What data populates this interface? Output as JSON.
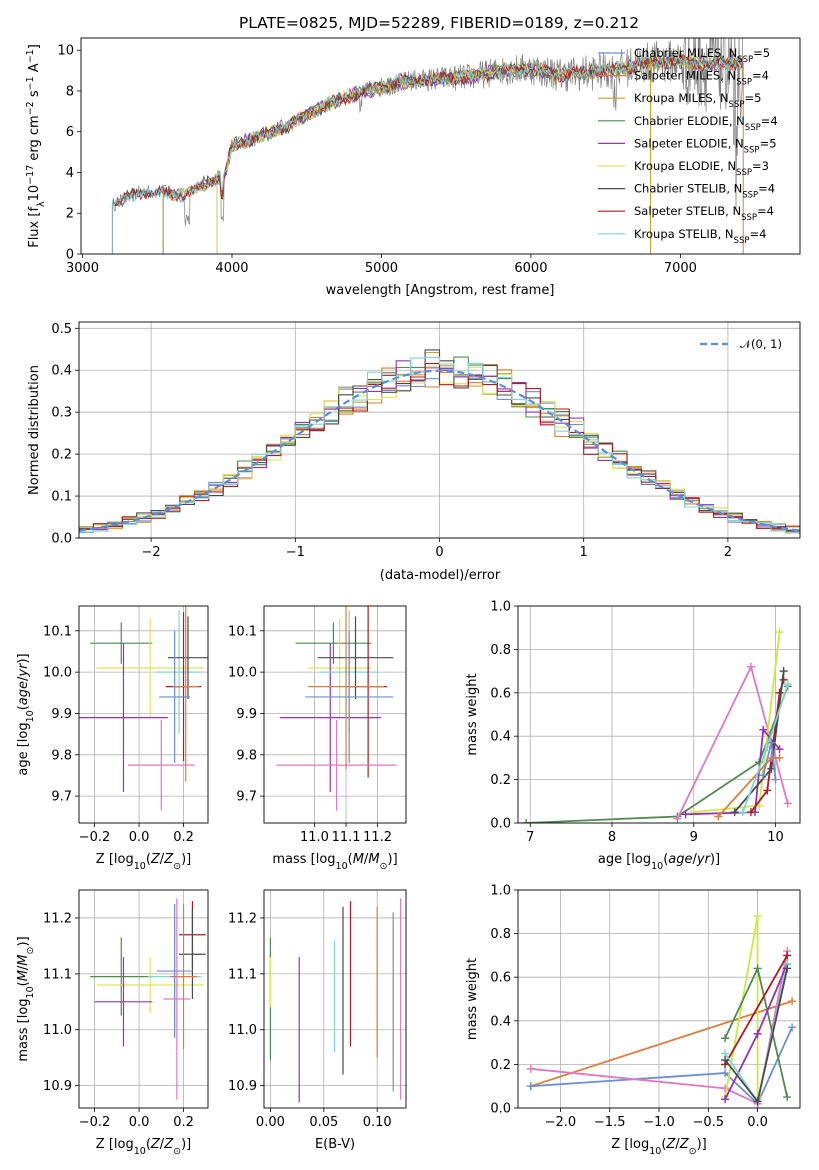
{
  "title": "PLATE=0825, MJD=52289, FIBERID=0189, z=0.212",
  "colors": {
    "chabrier_miles": "#6a8fd6",
    "salpeter_miles": "#e07b39",
    "kroupa_miles": "#c9a227",
    "chabrier_elodie": "#4f8a4f",
    "salpeter_elodie": "#9b30b8",
    "kroupa_elodie": "#dce35b",
    "chabrier_stelib": "#4a4a4a",
    "salpeter_stelib": "#b3181c",
    "kroupa_stelib": "#7fd4d4",
    "pink": "#e377c2",
    "lime": "#c6ec3c",
    "data": "#808080",
    "normal": "#5b8fd6"
  },
  "chart_data": [
    {
      "type": "line",
      "panel": "spectrum",
      "xlabel": "wavelength [Angstrom, rest frame]",
      "ylabel": "Flux [f_λ10^-17 erg cm^-2 s^-1 A^-1]",
      "xlim": [
        2990,
        7800
      ],
      "ylim": [
        0,
        10.6
      ],
      "xticks": [
        "3000",
        "4000",
        "5000",
        "6000",
        "7000"
      ],
      "yticks": [
        "0",
        "2",
        "4",
        "6",
        "8",
        "10"
      ],
      "grid": false,
      "legend_position": "right",
      "continuum": {
        "x": [
          3200,
          3400,
          3550,
          3700,
          3850,
          3950,
          4000,
          4200,
          4400,
          4600,
          4800,
          5000,
          5200,
          5400,
          5600,
          5800,
          6000,
          6200,
          6400,
          6600,
          6800,
          7000,
          7200,
          7400
        ],
        "y": [
          2.4,
          3.1,
          3.0,
          2.9,
          3.6,
          3.8,
          5.3,
          5.8,
          6.4,
          7.2,
          7.8,
          8.2,
          8.5,
          8.6,
          8.7,
          9.0,
          9.1,
          8.8,
          8.9,
          9.1,
          9.4,
          9.5,
          9.3,
          9.4
        ]
      },
      "series": [
        {
          "name": "Chabrier MILES, N_SSP=5",
          "legend_label": "Chabrier MILES, N",
          "legend_sub": "SSP",
          "legend_suffix": "=5",
          "color_key": "chabrier_miles",
          "start": 3540
        },
        {
          "name": "Salpeter MILES, N_SSP=4",
          "legend_label": "Salpeter MILES, N",
          "legend_sub": "SSP",
          "legend_suffix": "=4",
          "color_key": "salpeter_miles",
          "start": 3540
        },
        {
          "name": "Kroupa MILES, N_SSP=5",
          "legend_label": "Kroupa MILES, N",
          "legend_sub": "SSP",
          "legend_suffix": "=5",
          "color_key": "kroupa_miles",
          "start": 3540
        },
        {
          "name": "Chabrier ELODIE, N_SSP=4",
          "legend_label": "Chabrier ELODIE, N",
          "legend_sub": "SSP",
          "legend_suffix": "=4",
          "color_key": "chabrier_elodie",
          "start": 3900
        },
        {
          "name": "Salpeter ELODIE, N_SSP=5",
          "legend_label": "Salpeter ELODIE, N",
          "legend_sub": "SSP",
          "legend_suffix": "=5",
          "color_key": "salpeter_elodie",
          "start": 3900
        },
        {
          "name": "Kroupa ELODIE, N_SSP=3",
          "legend_label": "Kroupa ELODIE, N",
          "legend_sub": "SSP",
          "legend_suffix": "=3",
          "color_key": "kroupa_elodie",
          "start": 3900
        },
        {
          "name": "Chabrier STELIB, N_SSP=4",
          "legend_label": "Chabrier STELIB, N",
          "legend_sub": "SSP",
          "legend_suffix": "=4",
          "color_key": "chabrier_stelib",
          "start": 3200
        },
        {
          "name": "Salpeter STELIB, N_SSP=4",
          "legend_label": "Salpeter STELIB, N",
          "legend_sub": "SSP",
          "legend_suffix": "=4",
          "color_key": "salpeter_stelib",
          "start": 3200
        },
        {
          "name": "Kroupa STELIB, N_SSP=4",
          "legend_label": "Kroupa STELIB, N",
          "legend_sub": "SSP",
          "legend_suffix": "=4",
          "color_key": "kroupa_stelib",
          "start": 3200
        }
      ]
    },
    {
      "type": "line",
      "panel": "residual_histogram",
      "xlabel": "(data-model)/error",
      "ylabel": "Normed distribution",
      "xlim": [
        -2.5,
        2.5
      ],
      "ylim": [
        0,
        0.515
      ],
      "xticks": [
        "−2",
        "−1",
        "0",
        "1",
        "2"
      ],
      "yticks": [
        "0.0",
        "0.1",
        "0.2",
        "0.3",
        "0.4",
        "0.5"
      ],
      "grid": true,
      "legend_position": "upper right",
      "reference_curve": "𝒩(0, 1)",
      "bin_width": 0.1,
      "histogram_series": 9
    },
    {
      "type": "scatter",
      "panel": "age_vs_metallicity",
      "xlabel": "Z [log10(Z/Z⊙)]",
      "ylabel": "age [log10(age/yr)]",
      "xlim": [
        -0.27,
        0.31
      ],
      "ylim": [
        9.635,
        10.16
      ],
      "xticks": [
        "−0.2",
        "0.0",
        "0.2"
      ],
      "yticks": [
        "9.7",
        "9.8",
        "9.9",
        "10.0",
        "10.1"
      ],
      "grid": true,
      "points": [
        {
          "x": -0.08,
          "xerr": 0.14,
          "y": 10.07,
          "yerr": 0.05,
          "color_key": "chabrier_elodie"
        },
        {
          "x": 0.05,
          "xerr": 0.24,
          "y": 10.01,
          "yerr": 0.12,
          "color_key": "kroupa_elodie"
        },
        {
          "x": -0.07,
          "xerr": 0.2,
          "y": 9.89,
          "yerr": 0.18,
          "color_key": "salpeter_elodie"
        },
        {
          "x": 0.18,
          "xerr": 0.1,
          "y": 10.0,
          "yerr": 0.15,
          "color_key": "kroupa_stelib"
        },
        {
          "x": 0.22,
          "xerr": 0.09,
          "y": 10.035,
          "yerr": 0.1,
          "color_key": "chabrier_stelib"
        },
        {
          "x": 0.2,
          "xerr": 0.08,
          "y": 9.965,
          "yerr": 0.18,
          "color_key": "salpeter_stelib"
        },
        {
          "x": 0.21,
          "xerr": 0.06,
          "y": 9.965,
          "yerr": 0.23,
          "color_key": "salpeter_miles"
        },
        {
          "x": 0.16,
          "xerr": 0.07,
          "y": 9.94,
          "yerr": 0.16,
          "color_key": "chabrier_miles"
        },
        {
          "x": 0.1,
          "xerr": 0.15,
          "y": 9.775,
          "yerr": 0.11,
          "color_key": "pink"
        }
      ]
    },
    {
      "type": "scatter",
      "panel": "age_vs_mass",
      "xlabel": "mass [log10(M/M⊙)]",
      "ylabel": "",
      "xlim": [
        10.84,
        11.29
      ],
      "ylim": [
        9.635,
        10.16
      ],
      "xticks": [
        "11.0",
        "11.1",
        "11.2"
      ],
      "yticks": [
        "9.7",
        "9.8",
        "9.9",
        "10.0",
        "10.1"
      ],
      "grid": true,
      "points": [
        {
          "x": 11.06,
          "xerr": 0.12,
          "y": 10.07,
          "yerr": 0.05,
          "color_key": "chabrier_elodie"
        },
        {
          "x": 11.08,
          "xerr": 0.1,
          "y": 10.01,
          "yerr": 0.12,
          "color_key": "kroupa_elodie"
        },
        {
          "x": 11.05,
          "xerr": 0.16,
          "y": 9.89,
          "yerr": 0.18,
          "color_key": "salpeter_elodie"
        },
        {
          "x": 11.11,
          "xerr": 0.09,
          "y": 10.0,
          "yerr": 0.15,
          "color_key": "kroupa_stelib"
        },
        {
          "x": 11.13,
          "xerr": 0.12,
          "y": 10.035,
          "yerr": 0.1,
          "color_key": "chabrier_stelib"
        },
        {
          "x": 11.17,
          "xerr": 0.06,
          "y": 9.965,
          "yerr": 0.22,
          "color_key": "salpeter_stelib"
        },
        {
          "x": 11.1,
          "xerr": 0.12,
          "y": 9.965,
          "yerr": 0.2,
          "color_key": "salpeter_miles"
        },
        {
          "x": 11.11,
          "xerr": 0.14,
          "y": 9.94,
          "yerr": 0.16,
          "color_key": "chabrier_miles"
        },
        {
          "x": 11.07,
          "xerr": 0.19,
          "y": 9.775,
          "yerr": 0.11,
          "color_key": "pink"
        }
      ]
    },
    {
      "type": "line",
      "panel": "mass_weight_vs_age",
      "xlabel": "age [log10(age/yr)]",
      "ylabel": "mass weight",
      "xlim": [
        6.85,
        10.3
      ],
      "ylim": [
        0,
        1
      ],
      "xticks": [
        "7",
        "8",
        "9",
        "10"
      ],
      "yticks": [
        "0.0",
        "0.2",
        "0.4",
        "0.6",
        "0.8",
        "1.0"
      ],
      "grid": true,
      "series": [
        {
          "color_key": "chabrier_elodie",
          "x": [
            6.95,
            8.8,
            9.8,
            10.15
          ],
          "y": [
            0.0,
            0.03,
            0.28,
            0.63
          ]
        },
        {
          "color_key": "pink",
          "x": [
            8.8,
            9.7,
            10.15
          ],
          "y": [
            0.02,
            0.72,
            0.09
          ]
        },
        {
          "color_key": "lime",
          "x": [
            9.0,
            9.8,
            10.05
          ],
          "y": [
            0.05,
            0.08,
            0.88
          ]
        },
        {
          "color_key": "salpeter_elodie",
          "x": [
            8.9,
            9.75,
            9.85,
            10.05
          ],
          "y": [
            0.04,
            0.05,
            0.43,
            0.34
          ]
        },
        {
          "color_key": "salpeter_stelib",
          "x": [
            9.7,
            9.9,
            10.05,
            10.1
          ],
          "y": [
            0.05,
            0.15,
            0.6,
            0.66
          ]
        },
        {
          "color_key": "chabrier_stelib",
          "x": [
            9.5,
            9.95,
            10.1
          ],
          "y": [
            0.05,
            0.25,
            0.7
          ]
        },
        {
          "color_key": "salpeter_miles",
          "x": [
            9.3,
            9.95,
            10.05
          ],
          "y": [
            0.03,
            0.3,
            0.3
          ]
        },
        {
          "color_key": "kroupa_stelib",
          "x": [
            9.6,
            9.9,
            10.15
          ],
          "y": [
            0.05,
            0.35,
            0.64
          ]
        },
        {
          "color_key": "chabrier_miles",
          "x": [
            9.85,
            9.95,
            10.0
          ],
          "y": [
            0.22,
            0.37,
            0.2
          ]
        }
      ]
    },
    {
      "type": "scatter",
      "panel": "mass_vs_metallicity",
      "xlabel": "Z [log10(Z/Z⊙)]",
      "ylabel": "mass [log10(M/M⊙)]",
      "xlim": [
        -0.27,
        0.31
      ],
      "ylim": [
        10.86,
        11.25
      ],
      "xticks": [
        "−0.2",
        "0.0",
        "0.2"
      ],
      "yticks": [
        "10.9",
        "11.0",
        "11.1",
        "11.2"
      ],
      "grid": true,
      "points": [
        {
          "x": -0.08,
          "xerr": 0.14,
          "y": 11.095,
          "yerr": 0.07,
          "color_key": "chabrier_elodie"
        },
        {
          "x": 0.05,
          "xerr": 0.24,
          "y": 11.08,
          "yerr": 0.05,
          "color_key": "kroupa_elodie"
        },
        {
          "x": -0.07,
          "xerr": 0.13,
          "y": 11.05,
          "yerr": 0.08,
          "color_key": "salpeter_elodie"
        },
        {
          "x": 0.16,
          "xerr": 0.12,
          "y": 11.095,
          "yerr": 0.1,
          "color_key": "kroupa_stelib"
        },
        {
          "x": 0.24,
          "xerr": 0.06,
          "y": 11.17,
          "yerr": 0.06,
          "color_key": "salpeter_stelib"
        },
        {
          "x": 0.24,
          "xerr": 0.06,
          "y": 11.135,
          "yerr": 0.08,
          "color_key": "chabrier_stelib"
        },
        {
          "x": 0.2,
          "xerr": 0.06,
          "y": 11.095,
          "yerr": 0.13,
          "color_key": "salpeter_miles"
        },
        {
          "x": 0.16,
          "xerr": 0.08,
          "y": 11.105,
          "yerr": 0.12,
          "color_key": "chabrier_miles"
        },
        {
          "x": 0.17,
          "xerr": 0.06,
          "y": 11.055,
          "yerr": 0.18,
          "color_key": "pink"
        }
      ]
    },
    {
      "type": "scatter",
      "panel": "mass_vs_extinction",
      "xlabel": "E(B-V)",
      "ylabel": "",
      "xlim": [
        -0.006,
        0.127
      ],
      "ylim": [
        10.86,
        11.25
      ],
      "xticks": [
        "0.00",
        "0.05",
        "0.10"
      ],
      "yticks": [
        "10.9",
        "11.0",
        "11.1",
        "11.2"
      ],
      "grid": true,
      "points": [
        {
          "x": 0.0,
          "y": 11.055,
          "yerr": 0.11,
          "color_key": "chabrier_elodie"
        },
        {
          "x": 0.0,
          "y": 11.085,
          "yerr": 0.045,
          "color_key": "kroupa_elodie"
        },
        {
          "x": 0.027,
          "y": 11.0,
          "yerr": 0.13,
          "color_key": "salpeter_elodie"
        },
        {
          "x": 0.06,
          "y": 11.06,
          "yerr": 0.1,
          "color_key": "kroupa_stelib"
        },
        {
          "x": 0.068,
          "y": 11.07,
          "yerr": 0.15,
          "color_key": "chabrier_stelib"
        },
        {
          "x": 0.075,
          "y": 11.1,
          "yerr": 0.13,
          "color_key": "salpeter_stelib"
        },
        {
          "x": 0.1,
          "y": 11.085,
          "yerr": 0.135,
          "color_key": "salpeter_miles"
        },
        {
          "x": 0.115,
          "y": 11.05,
          "yerr": 0.16,
          "color_key": "chabrier_miles"
        },
        {
          "x": 0.122,
          "y": 11.055,
          "yerr": 0.18,
          "color_key": "pink"
        }
      ]
    },
    {
      "type": "line",
      "panel": "mass_weight_vs_metallicity",
      "xlabel": "Z [log10(Z/Z⊙)]",
      "ylabel": "mass weight",
      "xlim": [
        -2.43,
        0.43
      ],
      "ylim": [
        0,
        1
      ],
      "xticks": [
        "−2.0",
        "−1.5",
        "−1.0",
        "−0.5",
        "0.0"
      ],
      "yticks": [
        "0.0",
        "0.2",
        "0.4",
        "0.6",
        "0.8",
        "1.0"
      ],
      "grid": true,
      "series": [
        {
          "color_key": "salpeter_miles",
          "x": [
            -2.3,
            0.35
          ],
          "y": [
            0.1,
            0.49
          ]
        },
        {
          "color_key": "chabrier_miles",
          "x": [
            -2.3,
            -0.33,
            0.0,
            0.35
          ],
          "y": [
            0.1,
            0.16,
            0.02,
            0.37
          ]
        },
        {
          "color_key": "pink",
          "x": [
            -2.3,
            -0.33,
            0.0,
            0.3
          ],
          "y": [
            0.18,
            0.09,
            0.02,
            0.72
          ]
        },
        {
          "color_key": "lime",
          "x": [
            -0.33,
            0.0,
            0.0
          ],
          "y": [
            0.05,
            0.88,
            0.05
          ]
        },
        {
          "color_key": "chabrier_elodie",
          "x": [
            -0.33,
            0.0,
            0.3
          ],
          "y": [
            0.32,
            0.64,
            0.05
          ]
        },
        {
          "color_key": "salpeter_elodie",
          "x": [
            -0.33,
            0.0,
            0.3
          ],
          "y": [
            0.04,
            0.34,
            0.66
          ]
        },
        {
          "color_key": "salpeter_stelib",
          "x": [
            -0.33,
            0.3
          ],
          "y": [
            0.2,
            0.7
          ]
        },
        {
          "color_key": "kroupa_stelib",
          "x": [
            -0.33,
            0.0,
            0.3
          ],
          "y": [
            0.25,
            0.03,
            0.66
          ]
        },
        {
          "color_key": "chabrier_stelib",
          "x": [
            -0.33,
            0.0,
            0.3
          ],
          "y": [
            0.22,
            0.03,
            0.64
          ]
        }
      ]
    }
  ]
}
